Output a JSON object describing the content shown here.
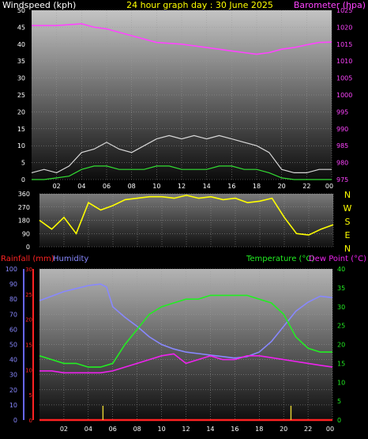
{
  "chart_data": [
    {
      "type": "line",
      "header": "24 hour graph day : 30 June 2025",
      "left_axis_label": "Windspeed (kph)",
      "right_axis_label": "Barometer (hpa)",
      "x_ticks": [
        "02",
        "04",
        "06",
        "08",
        "10",
        "12",
        "14",
        "16",
        "18",
        "20",
        "22",
        "00"
      ],
      "y_left_ticks": [
        "0",
        "5",
        "10",
        "15",
        "20",
        "25",
        "30",
        "35",
        "40",
        "45",
        "50"
      ],
      "y_right_ticks": [
        "975",
        "980",
        "985",
        "990",
        "995",
        "1000",
        "1005",
        "1010",
        "1015",
        "1020",
        "1025"
      ],
      "ylim_left": [
        0,
        50
      ],
      "ylim_right": [
        975,
        1025
      ],
      "series": [
        {
          "name": "Barometer",
          "axis": "right",
          "color": "#ff44ff",
          "x": [
            0,
            2,
            4,
            5,
            6,
            8,
            10,
            12,
            14,
            16,
            17,
            18,
            19,
            20,
            21,
            22,
            23,
            24
          ],
          "y": [
            1020.5,
            1020.5,
            1021,
            1020,
            1019.5,
            1017.5,
            1015.5,
            1015,
            1014,
            1013,
            1012.5,
            1012,
            1012.5,
            1013.5,
            1014,
            1014.8,
            1015.5,
            1015.6
          ]
        },
        {
          "name": "Wind gust",
          "axis": "left",
          "color": "#d8d8d8",
          "x": [
            0,
            1,
            2,
            3,
            4,
            5,
            6,
            7,
            8,
            9,
            10,
            11,
            12,
            13,
            14,
            15,
            16,
            17,
            18,
            19,
            20,
            21,
            22,
            23,
            24
          ],
          "y": [
            2,
            3,
            2,
            4,
            8,
            9,
            11,
            9,
            8,
            10,
            12,
            13,
            12,
            13,
            12,
            13,
            12,
            11,
            10,
            8,
            3,
            2,
            2,
            3,
            3
          ]
        },
        {
          "name": "Wind speed",
          "axis": "left",
          "color": "#33dd33",
          "x": [
            0,
            1,
            2,
            3,
            4,
            5,
            6,
            7,
            8,
            9,
            10,
            11,
            12,
            13,
            14,
            15,
            16,
            17,
            18,
            19,
            20,
            21,
            22,
            23,
            24
          ],
          "y": [
            0,
            0,
            0.5,
            1,
            3,
            4,
            4,
            3,
            3,
            3,
            4,
            4,
            3,
            3,
            3,
            4,
            4,
            3,
            3,
            2,
            0.5,
            0,
            0,
            0,
            0
          ]
        }
      ]
    },
    {
      "type": "line",
      "y_ticks": [
        "360",
        "270",
        "180",
        "90",
        "0"
      ],
      "ylim": [
        0,
        360
      ],
      "compass_labels": [
        "N",
        "W",
        "S",
        "E",
        "N"
      ],
      "series": [
        {
          "name": "Wind direction",
          "color": "#ffff00",
          "x": [
            0,
            1,
            2,
            3,
            4,
            5,
            6,
            7,
            8,
            9,
            10,
            11,
            12,
            13,
            14,
            15,
            16,
            17,
            18,
            19,
            20,
            21,
            22,
            23,
            24
          ],
          "y": [
            180,
            120,
            200,
            90,
            300,
            250,
            280,
            320,
            330,
            340,
            340,
            330,
            350,
            330,
            340,
            320,
            330,
            300,
            310,
            330,
            200,
            90,
            80,
            120,
            150
          ]
        }
      ]
    },
    {
      "type": "line",
      "left_axis_labels": [
        "Rainfall (mm)",
        "Humidity"
      ],
      "right_axis_labels": [
        "Temperature (°C)",
        "Dew Point (°C)"
      ],
      "x_ticks": [
        "02",
        "04",
        "06",
        "08",
        "10",
        "12",
        "14",
        "16",
        "18",
        "20",
        "22",
        "00"
      ],
      "y_humidity_ticks": [
        "0",
        "10",
        "20",
        "30",
        "40",
        "50",
        "60",
        "70",
        "80",
        "90",
        "100"
      ],
      "y_rain_ticks": [
        "0",
        "5",
        "10",
        "15",
        "20",
        "25",
        "30"
      ],
      "y_temp_ticks": [
        "0",
        "5",
        "10",
        "15",
        "20",
        "25",
        "30",
        "35",
        "40"
      ],
      "ylim_humidity": [
        0,
        100
      ],
      "ylim_rain": [
        0,
        30
      ],
      "ylim_temp": [
        0,
        40
      ],
      "series": [
        {
          "name": "Humidity",
          "axis": "humidity",
          "color": "#8888ff",
          "x": [
            0,
            1,
            2,
            3,
            4,
            5,
            5.5,
            6,
            7,
            8,
            9,
            10,
            11,
            12,
            13,
            14,
            15,
            16,
            17,
            18,
            19,
            20,
            21,
            22,
            23,
            24
          ],
          "y": [
            79,
            82,
            85,
            87,
            89,
            90,
            88,
            75,
            68,
            62,
            55,
            50,
            47,
            45,
            44,
            43,
            42,
            41,
            42,
            45,
            52,
            62,
            72,
            78,
            82,
            81
          ]
        },
        {
          "name": "Temperature",
          "axis": "temp",
          "color": "#22ee22",
          "x": [
            0,
            1,
            2,
            3,
            4,
            5,
            6,
            7,
            8,
            9,
            10,
            11,
            12,
            13,
            14,
            15,
            16,
            17,
            18,
            19,
            20,
            21,
            22,
            23,
            24
          ],
          "y": [
            17,
            16,
            15,
            15,
            14,
            14,
            15,
            20,
            24,
            28,
            30,
            31,
            32,
            32,
            33,
            33,
            33,
            33,
            32,
            31,
            28,
            22,
            19,
            18,
            18
          ]
        },
        {
          "name": "Dew Point",
          "axis": "temp",
          "color": "#ee22ee",
          "x": [
            0,
            1,
            2,
            3,
            4,
            5,
            6,
            7,
            8,
            9,
            10,
            11,
            12,
            13,
            14,
            15,
            16,
            17,
            18,
            19,
            20,
            21,
            22,
            23,
            24
          ],
          "y": [
            13,
            13,
            12.5,
            12.5,
            12.5,
            12.5,
            13,
            14,
            15,
            16,
            17,
            17.5,
            15,
            16,
            17,
            16,
            16,
            17,
            17,
            16.5,
            16,
            15.5,
            15,
            14.5,
            14
          ]
        },
        {
          "name": "Rainfall",
          "axis": "rain",
          "color": "#ff2222",
          "x": [
            0,
            24
          ],
          "y": [
            0,
            0
          ]
        }
      ],
      "rain_markers": [
        5.2,
        20.6
      ]
    }
  ]
}
